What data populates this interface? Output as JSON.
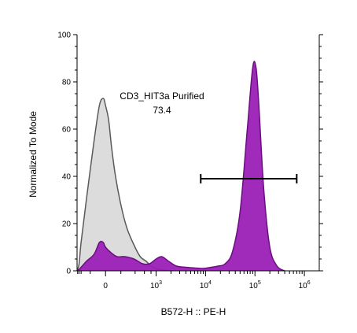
{
  "chart_data": {
    "type": "area",
    "title": "",
    "xlabel": "B572-H :: PE-H",
    "ylabel": "Normalized To Mode",
    "xscale": "biexponential",
    "ylim": [
      0,
      100
    ],
    "y_ticks": [
      "0",
      "20",
      "40",
      "60",
      "80",
      "100"
    ],
    "x_ticks": [
      {
        "base": "",
        "exp": "",
        "text": "0",
        "value": 0
      },
      {
        "base": "10",
        "exp": "3",
        "value": 1000
      },
      {
        "base": "10",
        "exp": "4",
        "value": 10000
      },
      {
        "base": "10",
        "exp": "5",
        "value": 100000
      },
      {
        "base": "10",
        "exp": "6",
        "value": 1000000
      }
    ],
    "series": [
      {
        "color": "#dcdcdc",
        "edge_color": "#5a5a5a",
        "x": [
          -900,
          -600,
          -400,
          -250,
          -150,
          -80,
          -30,
          0,
          40,
          80,
          130,
          200,
          280,
          380,
          500,
          650,
          800,
          1000,
          1300,
          2000
        ],
        "y": [
          0,
          3,
          12,
          30,
          55,
          70,
          73,
          70,
          64,
          52,
          40,
          28,
          18,
          11,
          6,
          4,
          2,
          1,
          0.5,
          0
        ]
      },
      {
        "color": "#9b1fb5",
        "edge_color": "#6a0f80",
        "x": [
          -900,
          -500,
          -250,
          -150,
          -80,
          -30,
          0,
          60,
          150,
          250,
          380,
          550,
          750,
          1000,
          1300,
          1800,
          2600,
          4000,
          6000,
          9000,
          13000,
          18000,
          25000,
          35000,
          50000,
          70000,
          90000,
          105000,
          120000,
          150000,
          200000,
          280000,
          400000
        ],
        "y": [
          0,
          1,
          4,
          7,
          12,
          12,
          10,
          8,
          6,
          6,
          5,
          3,
          3,
          5,
          6,
          4,
          2,
          1.5,
          1.2,
          1,
          1.5,
          2,
          3,
          8,
          25,
          60,
          86,
          86,
          70,
          35,
          10,
          2,
          0
        ]
      }
    ],
    "gate": {
      "name": "CD3_HIT3a Purified",
      "value": "73.4",
      "x_range": [
        8000,
        700000
      ],
      "y_level": 39
    },
    "grid": false,
    "legend": "none"
  }
}
